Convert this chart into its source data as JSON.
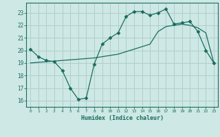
{
  "xlabel": "Humidex (Indice chaleur)",
  "bg_color": "#cde8e5",
  "line_color": "#1a6b5e",
  "grid_color": "#b0ceca",
  "xlim": [
    -0.5,
    23.5
  ],
  "ylim": [
    15.5,
    23.8
  ],
  "yticks": [
    16,
    17,
    18,
    19,
    20,
    21,
    22,
    23
  ],
  "xticks": [
    0,
    1,
    2,
    3,
    4,
    5,
    6,
    7,
    8,
    9,
    10,
    11,
    12,
    13,
    14,
    15,
    16,
    17,
    18,
    19,
    20,
    21,
    22,
    23
  ],
  "series1_x": [
    0,
    1,
    2,
    3,
    4,
    5,
    6,
    7,
    8,
    9,
    10,
    11,
    12,
    13,
    14,
    15,
    16,
    17,
    18,
    19,
    20,
    21,
    22,
    23
  ],
  "series1_y": [
    20.1,
    19.5,
    19.2,
    19.1,
    18.4,
    17.0,
    16.1,
    16.2,
    18.9,
    20.5,
    21.0,
    21.4,
    22.7,
    23.1,
    23.1,
    22.8,
    23.0,
    23.3,
    22.1,
    22.2,
    22.3,
    21.5,
    20.0,
    19.0
  ],
  "series2_x": [
    0,
    1,
    2,
    3,
    4,
    5,
    6,
    7,
    8,
    9,
    10,
    11,
    12,
    13,
    14,
    15,
    16,
    17,
    18,
    19,
    20,
    21,
    22,
    23
  ],
  "series2_y": [
    19.0,
    19.05,
    19.1,
    19.15,
    19.2,
    19.25,
    19.3,
    19.35,
    19.4,
    19.5,
    19.6,
    19.7,
    19.9,
    20.1,
    20.3,
    20.5,
    21.5,
    21.9,
    22.0,
    22.1,
    22.0,
    21.8,
    21.4,
    19.0
  ]
}
